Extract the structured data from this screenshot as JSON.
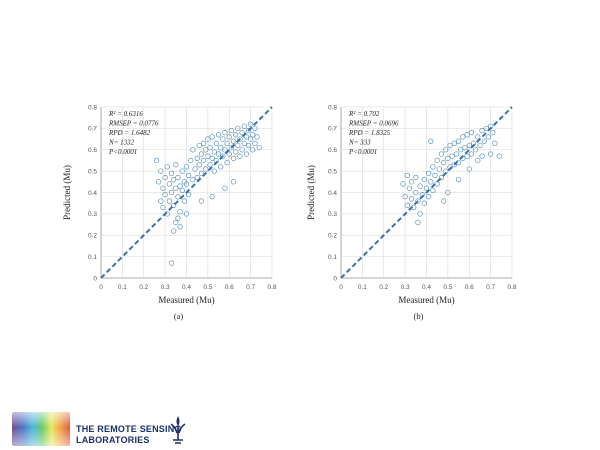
{
  "chart_data": [
    {
      "type": "scatter",
      "panel_label": "(a)",
      "xlabel": "Measured (Mu)",
      "ylabel": "Predicted (Mu)",
      "xlim": [
        0,
        0.8
      ],
      "ylim": [
        0,
        0.8
      ],
      "xticks": [
        "0",
        "0.1",
        "0.2",
        "0.3",
        "0.4",
        "0.5",
        "0.6",
        "0.7",
        "0.8"
      ],
      "yticks": [
        "0",
        "0.1",
        "0.2",
        "0.3",
        "0.4",
        "0.5",
        "0.6",
        "0.7",
        "0.8"
      ],
      "grid": true,
      "stats": [
        "R² = 0.6316",
        "RMSEP = 0.0776",
        "RPD = 1.6482",
        "N= 1332",
        "P<0.0001"
      ],
      "series": [
        {
          "points": [
            [
              0.26,
              0.55
            ],
            [
              0.27,
              0.45
            ],
            [
              0.28,
              0.36
            ],
            [
              0.28,
              0.5
            ],
            [
              0.29,
              0.42
            ],
            [
              0.29,
              0.33
            ],
            [
              0.3,
              0.47
            ],
            [
              0.3,
              0.39
            ],
            [
              0.31,
              0.52
            ],
            [
              0.31,
              0.3
            ],
            [
              0.32,
              0.44
            ],
            [
              0.32,
              0.36
            ],
            [
              0.33,
              0.49
            ],
            [
              0.33,
              0.4
            ],
            [
              0.34,
              0.34
            ],
            [
              0.34,
              0.46
            ],
            [
              0.35,
              0.42
            ],
            [
              0.35,
              0.53
            ],
            [
              0.36,
              0.38
            ],
            [
              0.36,
              0.47
            ],
            [
              0.37,
              0.43
            ],
            [
              0.37,
              0.31
            ],
            [
              0.38,
              0.5
            ],
            [
              0.38,
              0.41
            ],
            [
              0.39,
              0.45
            ],
            [
              0.39,
              0.36
            ],
            [
              0.4,
              0.52
            ],
            [
              0.4,
              0.44
            ],
            [
              0.41,
              0.48
            ],
            [
              0.41,
              0.39
            ],
            [
              0.42,
              0.55
            ],
            [
              0.43,
              0.46
            ],
            [
              0.43,
              0.6
            ],
            [
              0.44,
              0.51
            ],
            [
              0.45,
              0.56
            ],
            [
              0.45,
              0.47
            ],
            [
              0.46,
              0.62
            ],
            [
              0.46,
              0.53
            ],
            [
              0.47,
              0.58
            ],
            [
              0.47,
              0.49
            ],
            [
              0.48,
              0.63
            ],
            [
              0.48,
              0.55
            ],
            [
              0.49,
              0.51
            ],
            [
              0.49,
              0.6
            ],
            [
              0.5,
              0.57
            ],
            [
              0.5,
              0.65
            ],
            [
              0.51,
              0.53
            ],
            [
              0.51,
              0.61
            ],
            [
              0.52,
              0.56
            ],
            [
              0.52,
              0.66
            ],
            [
              0.53,
              0.59
            ],
            [
              0.53,
              0.5
            ],
            [
              0.54,
              0.63
            ],
            [
              0.54,
              0.55
            ],
            [
              0.55,
              0.67
            ],
            [
              0.55,
              0.58
            ],
            [
              0.56,
              0.61
            ],
            [
              0.56,
              0.52
            ],
            [
              0.57,
              0.65
            ],
            [
              0.57,
              0.57
            ],
            [
              0.58,
              0.68
            ],
            [
              0.58,
              0.6
            ],
            [
              0.59,
              0.63
            ],
            [
              0.59,
              0.54
            ],
            [
              0.6,
              0.66
            ],
            [
              0.6,
              0.58
            ],
            [
              0.61,
              0.69
            ],
            [
              0.61,
              0.61
            ],
            [
              0.62,
              0.64
            ],
            [
              0.62,
              0.56
            ],
            [
              0.63,
              0.67
            ],
            [
              0.63,
              0.59
            ],
            [
              0.64,
              0.7
            ],
            [
              0.64,
              0.62
            ],
            [
              0.65,
              0.65
            ],
            [
              0.65,
              0.57
            ],
            [
              0.66,
              0.68
            ],
            [
              0.66,
              0.6
            ],
            [
              0.67,
              0.71
            ],
            [
              0.67,
              0.63
            ],
            [
              0.68,
              0.66
            ],
            [
              0.68,
              0.58
            ],
            [
              0.69,
              0.69
            ],
            [
              0.69,
              0.62
            ],
            [
              0.7,
              0.72
            ],
            [
              0.7,
              0.65
            ],
            [
              0.71,
              0.67
            ],
            [
              0.71,
              0.6
            ],
            [
              0.72,
              0.7
            ],
            [
              0.72,
              0.63
            ],
            [
              0.73,
              0.66
            ],
            [
              0.74,
              0.61
            ],
            [
              0.34,
              0.22
            ],
            [
              0.35,
              0.26
            ],
            [
              0.37,
              0.24
            ],
            [
              0.33,
              0.07
            ],
            [
              0.47,
              0.36
            ],
            [
              0.52,
              0.38
            ],
            [
              0.58,
              0.42
            ],
            [
              0.62,
              0.45
            ],
            [
              0.36,
              0.28
            ],
            [
              0.4,
              0.3
            ]
          ]
        }
      ],
      "fit_line": [
        [
          0,
          0
        ],
        [
          0.8,
          0.8
        ]
      ]
    },
    {
      "type": "scatter",
      "panel_label": "(b)",
      "xlabel": "Measured (Mu)",
      "ylabel": "Predicted (Mu)",
      "xlim": [
        0,
        0.8
      ],
      "ylim": [
        0,
        0.8
      ],
      "xticks": [
        "0",
        "0.1",
        "0.2",
        "0.3",
        "0.4",
        "0.5",
        "0.6",
        "0.7",
        "0.8"
      ],
      "yticks": [
        "0",
        "0.1",
        "0.2",
        "0.3",
        "0.4",
        "0.5",
        "0.6",
        "0.7",
        "0.8"
      ],
      "grid": true,
      "stats": [
        "R² = 0.702",
        "RMSEP = 0.0696",
        "RPD = 1.8325",
        "N= 333",
        "P<0.0001"
      ],
      "series": [
        {
          "points": [
            [
              0.29,
              0.44
            ],
            [
              0.3,
              0.38
            ],
            [
              0.31,
              0.48
            ],
            [
              0.31,
              0.34
            ],
            [
              0.32,
              0.42
            ],
            [
              0.33,
              0.37
            ],
            [
              0.33,
              0.45
            ],
            [
              0.34,
              0.33
            ],
            [
              0.35,
              0.4
            ],
            [
              0.35,
              0.47
            ],
            [
              0.36,
              0.36
            ],
            [
              0.37,
              0.43
            ],
            [
              0.37,
              0.3
            ],
            [
              0.38,
              0.39
            ],
            [
              0.39,
              0.46
            ],
            [
              0.39,
              0.35
            ],
            [
              0.4,
              0.42
            ],
            [
              0.41,
              0.49
            ],
            [
              0.41,
              0.38
            ],
            [
              0.42,
              0.45
            ],
            [
              0.43,
              0.52
            ],
            [
              0.43,
              0.41
            ],
            [
              0.44,
              0.48
            ],
            [
              0.45,
              0.55
            ],
            [
              0.45,
              0.44
            ],
            [
              0.46,
              0.51
            ],
            [
              0.47,
              0.58
            ],
            [
              0.47,
              0.47
            ],
            [
              0.48,
              0.54
            ],
            [
              0.49,
              0.5
            ],
            [
              0.49,
              0.6
            ],
            [
              0.5,
              0.56
            ],
            [
              0.51,
              0.52
            ],
            [
              0.51,
              0.62
            ],
            [
              0.52,
              0.57
            ],
            [
              0.53,
              0.53
            ],
            [
              0.53,
              0.63
            ],
            [
              0.54,
              0.58
            ],
            [
              0.55,
              0.54
            ],
            [
              0.55,
              0.64
            ],
            [
              0.56,
              0.6
            ],
            [
              0.57,
              0.56
            ],
            [
              0.57,
              0.66
            ],
            [
              0.58,
              0.61
            ],
            [
              0.59,
              0.57
            ],
            [
              0.59,
              0.67
            ],
            [
              0.6,
              0.62
            ],
            [
              0.61,
              0.58
            ],
            [
              0.61,
              0.68
            ],
            [
              0.62,
              0.63
            ],
            [
              0.63,
              0.6
            ],
            [
              0.64,
              0.66
            ],
            [
              0.65,
              0.62
            ],
            [
              0.66,
              0.69
            ],
            [
              0.67,
              0.64
            ],
            [
              0.68,
              0.7
            ],
            [
              0.69,
              0.66
            ],
            [
              0.7,
              0.71
            ],
            [
              0.71,
              0.68
            ],
            [
              0.72,
              0.63
            ],
            [
              0.7,
              0.58
            ],
            [
              0.74,
              0.57
            ],
            [
              0.42,
              0.64
            ],
            [
              0.36,
              0.26
            ],
            [
              0.48,
              0.36
            ],
            [
              0.5,
              0.4
            ],
            [
              0.55,
              0.46
            ],
            [
              0.6,
              0.51
            ],
            [
              0.64,
              0.55
            ],
            [
              0.66,
              0.57
            ]
          ]
        }
      ],
      "fit_line": [
        [
          0,
          0
        ],
        [
          0.8,
          0.8
        ]
      ]
    }
  ],
  "logo": {
    "line1": "THE REMOTE SENSING",
    "line2": "LABORATORIES"
  },
  "colors": {
    "marker": "#3a7fb0",
    "fit_line": "#3a6fa8",
    "grid": "#d8d8d8",
    "axis": "#9a9a9a",
    "text": "#222222"
  }
}
